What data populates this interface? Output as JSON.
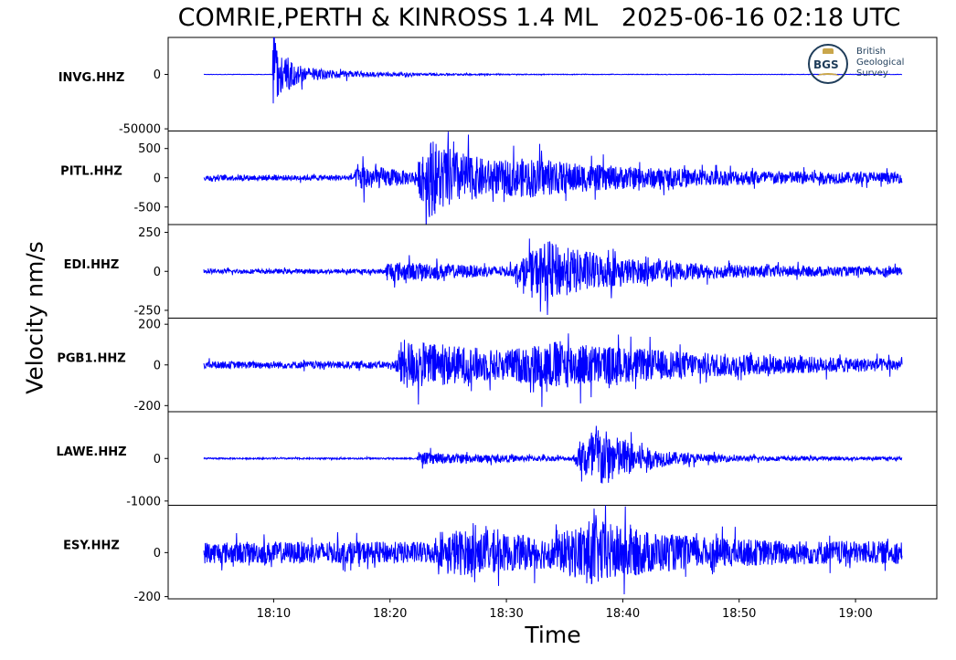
{
  "chart_data": {
    "type": "line",
    "title": "COMRIE,PERTH & KINROSS 1.4 ML   2025-06-16 02:18 UTC",
    "xlabel": "Time",
    "ylabel": "Velocity nm/s",
    "x_ticks": [
      "18:10",
      "18:20",
      "18:30",
      "18:40",
      "18:50",
      "19:00"
    ],
    "x_range": [
      "18:04",
      "19:04"
    ],
    "line_color": "#0000ff",
    "grid": false,
    "panels": [
      {
        "station": "INVG.HHZ",
        "y_ticks": [
          {
            "label": "0",
            "value": 0
          },
          {
            "label": "-50000",
            "value": -50000
          }
        ],
        "ylim": [
          -52000,
          34000
        ],
        "envelope": {
          "noise": 0.2,
          "bursts": [
            {
              "t": 6.0,
              "amp": 55,
              "rise": 0.1,
              "decay": 0.7
            },
            {
              "t": 7.2,
              "amp": 9,
              "rise": 0.3,
              "decay": 6.0
            }
          ]
        }
      },
      {
        "station": "PITL.HHZ",
        "y_ticks": [
          {
            "label": "500",
            "value": 500
          },
          {
            "label": "0",
            "value": 0
          },
          {
            "label": "-500",
            "value": -500
          }
        ],
        "ylim": [
          -800,
          800
        ],
        "envelope": {
          "noise": 3,
          "bursts": [
            {
              "t": 13.2,
              "amp": 14,
              "rise": 0.3,
              "decay": 4.0
            },
            {
              "t": 19.3,
              "amp": 38,
              "rise": 1.2,
              "decay": 6.0
            },
            {
              "t": 28.0,
              "amp": 10,
              "rise": 3.0,
              "decay": 25.0
            }
          ]
        }
      },
      {
        "station": "EDI.HHZ",
        "y_ticks": [
          {
            "label": "250",
            "value": 250
          },
          {
            "label": "0",
            "value": 0
          },
          {
            "label": "-250",
            "value": -250
          }
        ],
        "ylim": [
          -300,
          300
        ],
        "envelope": {
          "noise": 2.5,
          "bursts": [
            {
              "t": 15.8,
              "amp": 9,
              "rise": 0.3,
              "decay": 10.0
            },
            {
              "t": 29.5,
              "amp": 30,
              "rise": 3.0,
              "decay": 4.0
            },
            {
              "t": 33.0,
              "amp": 6,
              "rise": 3.0,
              "decay": 25.0
            }
          ]
        }
      },
      {
        "station": "PGB1.HHZ",
        "y_ticks": [
          {
            "label": "200",
            "value": 200
          },
          {
            "label": "0",
            "value": 0
          },
          {
            "label": "-200",
            "value": -200
          }
        ],
        "ylim": [
          -230,
          230
        ],
        "envelope": {
          "noise": 4,
          "bursts": [
            {
              "t": 17.0,
              "amp": 24,
              "rise": 0.6,
              "decay": 14.0
            },
            {
              "t": 30.0,
              "amp": 14,
              "rise": 4.0,
              "decay": 15.0
            }
          ]
        }
      },
      {
        "station": "LAWE.HHZ",
        "y_ticks": [
          {
            "label": "0",
            "value": 0
          },
          {
            "label": "-1000",
            "value": -1000
          }
        ],
        "ylim": [
          -1100,
          1100
        ],
        "envelope": {
          "noise": 0.8,
          "bursts": [
            {
              "t": 18.6,
              "amp": 6,
              "rise": 0.3,
              "decay": 10.0
            },
            {
              "t": 33.7,
              "amp": 38,
              "rise": 2.0,
              "decay": 2.8
            },
            {
              "t": 36.0,
              "amp": 3,
              "rise": 2.0,
              "decay": 18.0
            }
          ]
        }
      },
      {
        "station": "ESY.HHZ",
        "y_ticks": [
          {
            "label": "0",
            "value": 0
          },
          {
            "label": "-200",
            "value": -200
          }
        ],
        "ylim": [
          -210,
          215
        ],
        "envelope": {
          "noise": 12,
          "bursts": [
            {
              "t": 21.5,
              "amp": 14,
              "rise": 1.5,
              "decay": 9.0
            },
            {
              "t": 33.5,
              "amp": 22,
              "rise": 3.5,
              "decay": 5.5
            }
          ]
        }
      }
    ]
  },
  "logo": {
    "mark": "BGS",
    "line1": "British",
    "line2": "Geological",
    "line3": "Survey"
  }
}
